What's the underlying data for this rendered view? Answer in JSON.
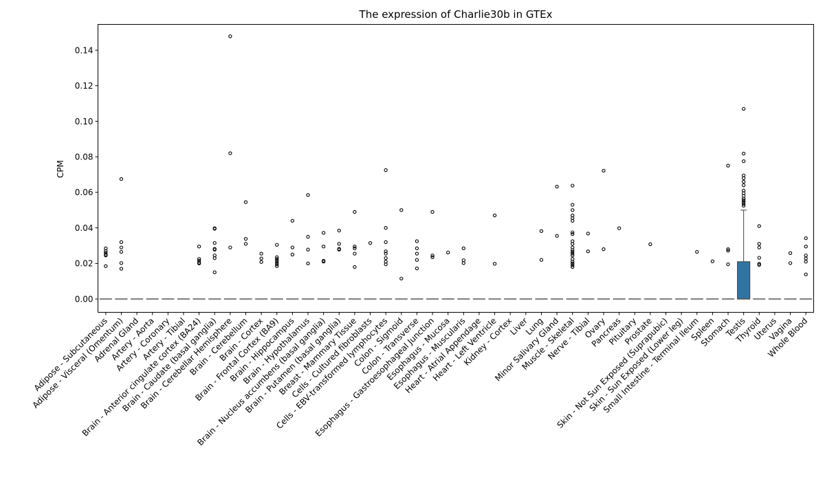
{
  "chart_data": {
    "type": "box",
    "title": "The expression of Charlie30b in GTEx",
    "xlabel": "",
    "ylabel": "CPM",
    "ylim": [
      -0.0075,
      0.1545
    ],
    "yticks": [
      "0.00",
      "0.02",
      "0.04",
      "0.06",
      "0.08",
      "0.10",
      "0.12",
      "0.14"
    ],
    "box_color": "#3274a1",
    "categories": [
      "Adipose - Subcutaneous",
      "Adipose - Visceral (Omentum)",
      "Adrenal Gland",
      "Artery - Aorta",
      "Artery - Coronary",
      "Artery - Tibial",
      "Brain - Anterior cingulate cortex (BA24)",
      "Brain - Caudate (basal ganglia)",
      "Brain - Cerebellar Hemisphere",
      "Brain - Cerebellum",
      "Brain - Cortex",
      "Brain - Frontal Cortex (BA9)",
      "Brain - Hippocampus",
      "Brain - Hypothalamus",
      "Brain - Nucleus accumbens (basal ganglia)",
      "Brain - Putamen (basal ganglia)",
      "Breast - Mammary Tissue",
      "Cells - Cultured fibroblasts",
      "Cells - EBV-transformed lymphocytes",
      "Colon - Sigmoid",
      "Colon - Transverse",
      "Esophagus - Gastroesophageal Junction",
      "Esophagus - Mucosa",
      "Esophagus - Muscularis",
      "Heart - Atrial Appendage",
      "Heart - Left Ventricle",
      "Kidney - Cortex",
      "Liver",
      "Lung",
      "Minor Salivary Gland",
      "Muscle - Skeletal",
      "Nerve - Tibial",
      "Ovary",
      "Pancreas",
      "Pituitary",
      "Prostate",
      "Skin - Not Sun Exposed (Suprapubic)",
      "Skin - Sun Exposed (Lower leg)",
      "Small Intestine - Terminal Ileum",
      "Spleen",
      "Stomach",
      "Testis",
      "Thyroid",
      "Uterus",
      "Vagina",
      "Whole Blood"
    ],
    "series": [
      {
        "q1": 0,
        "median": 0,
        "q3": 0,
        "whisker_low": 0,
        "whisker_high": 0,
        "outliers": [
          0.0285,
          0.027,
          0.026,
          0.025,
          0.0245,
          0.0185
        ]
      },
      {
        "q1": 0,
        "median": 0,
        "q3": 0,
        "whisker_low": 0,
        "whisker_high": 0,
        "outliers": [
          0.0675,
          0.032,
          0.029,
          0.0265,
          0.0202,
          0.017
        ]
      },
      {
        "q1": 0,
        "median": 0,
        "q3": 0,
        "whisker_low": 0,
        "whisker_high": 0,
        "outliers": []
      },
      {
        "q1": 0,
        "median": 0,
        "q3": 0,
        "whisker_low": 0,
        "whisker_high": 0,
        "outliers": []
      },
      {
        "q1": 0,
        "median": 0,
        "q3": 0,
        "whisker_low": 0,
        "whisker_high": 0,
        "outliers": []
      },
      {
        "q1": 0,
        "median": 0,
        "q3": 0,
        "whisker_low": 0,
        "whisker_high": 0,
        "outliers": []
      },
      {
        "q1": 0,
        "median": 0,
        "q3": 0,
        "whisker_low": 0,
        "whisker_high": 0,
        "outliers": [
          0.0295,
          0.0225,
          0.0215,
          0.0205,
          0.02
        ]
      },
      {
        "q1": 0,
        "median": 0,
        "q3": 0,
        "whisker_low": 0,
        "whisker_high": 0,
        "outliers": [
          0.0398,
          0.0395,
          0.0315,
          0.0282,
          0.0278,
          0.0245,
          0.023,
          0.015
        ]
      },
      {
        "q1": 0,
        "median": 0,
        "q3": 0,
        "whisker_low": 0,
        "whisker_high": 0,
        "outliers": [
          0.1478,
          0.082,
          0.029
        ]
      },
      {
        "q1": 0,
        "median": 0,
        "q3": 0,
        "whisker_low": 0,
        "whisker_high": 0,
        "outliers": [
          0.0545,
          0.0338,
          0.031
        ]
      },
      {
        "q1": 0,
        "median": 0,
        "q3": 0,
        "whisker_low": 0,
        "whisker_high": 0,
        "outliers": [
          0.0255,
          0.0228,
          0.0208
        ]
      },
      {
        "q1": 0,
        "median": 0,
        "q3": 0,
        "whisker_low": 0,
        "whisker_high": 0,
        "outliers": [
          0.0305,
          0.0235,
          0.0225,
          0.0215,
          0.0205,
          0.0195,
          0.0185
        ]
      },
      {
        "q1": 0,
        "median": 0,
        "q3": 0,
        "whisker_low": 0,
        "whisker_high": 0,
        "outliers": [
          0.044,
          0.029,
          0.025
        ]
      },
      {
        "q1": 0,
        "median": 0,
        "q3": 0,
        "whisker_low": 0,
        "whisker_high": 0,
        "outliers": [
          0.0585,
          0.035,
          0.0278,
          0.02
        ]
      },
      {
        "q1": 0,
        "median": 0,
        "q3": 0,
        "whisker_low": 0,
        "whisker_high": 0,
        "outliers": [
          0.0372,
          0.0295,
          0.0215,
          0.021
        ]
      },
      {
        "q1": 0,
        "median": 0,
        "q3": 0,
        "whisker_low": 0,
        "whisker_high": 0,
        "outliers": [
          0.0385,
          0.031,
          0.0282,
          0.0278
        ]
      },
      {
        "q1": 0,
        "median": 0,
        "q3": 0,
        "whisker_low": 0,
        "whisker_high": 0,
        "outliers": [
          0.049,
          0.0295,
          0.0285,
          0.0255,
          0.018
        ]
      },
      {
        "q1": 0,
        "median": 0,
        "q3": 0,
        "whisker_low": 0,
        "whisker_high": 0,
        "outliers": [
          0.0315
        ]
      },
      {
        "q1": 0,
        "median": 0,
        "q3": 0,
        "whisker_low": 0,
        "whisker_high": 0,
        "outliers": [
          0.0725,
          0.04,
          0.032,
          0.0268,
          0.0255,
          0.023,
          0.021,
          0.0195
        ]
      },
      {
        "q1": 0,
        "median": 0,
        "q3": 0,
        "whisker_low": 0,
        "whisker_high": 0,
        "outliers": [
          0.05,
          0.0115
        ]
      },
      {
        "q1": 0,
        "median": 0,
        "q3": 0,
        "whisker_low": 0,
        "whisker_high": 0,
        "outliers": [
          0.0325,
          0.0285,
          0.0255,
          0.022,
          0.0172
        ]
      },
      {
        "q1": 0,
        "median": 0,
        "q3": 0,
        "whisker_low": 0,
        "whisker_high": 0,
        "outliers": [
          0.049,
          0.0245,
          0.0235
        ]
      },
      {
        "q1": 0,
        "median": 0,
        "q3": 0,
        "whisker_low": 0,
        "whisker_high": 0,
        "outliers": [
          0.0262
        ]
      },
      {
        "q1": 0,
        "median": 0,
        "q3": 0,
        "whisker_low": 0,
        "whisker_high": 0,
        "outliers": [
          0.0285,
          0.0218,
          0.0202
        ]
      },
      {
        "q1": 0,
        "median": 0,
        "q3": 0,
        "whisker_low": 0,
        "whisker_high": 0,
        "outliers": []
      },
      {
        "q1": 0,
        "median": 0,
        "q3": 0,
        "whisker_low": 0,
        "whisker_high": 0,
        "outliers": [
          0.047,
          0.0198
        ]
      },
      {
        "q1": 0,
        "median": 0,
        "q3": 0,
        "whisker_low": 0,
        "whisker_high": 0,
        "outliers": []
      },
      {
        "q1": 0,
        "median": 0,
        "q3": 0,
        "whisker_low": 0,
        "whisker_high": 0,
        "outliers": []
      },
      {
        "q1": 0,
        "median": 0,
        "q3": 0,
        "whisker_low": 0,
        "whisker_high": 0,
        "outliers": [
          0.0382,
          0.022
        ]
      },
      {
        "q1": 0,
        "median": 0,
        "q3": 0,
        "whisker_low": 0,
        "whisker_high": 0,
        "outliers": [
          0.0632,
          0.0355
        ]
      },
      {
        "q1": 0,
        "median": 0,
        "q3": 0,
        "whisker_low": 0,
        "whisker_high": 0,
        "outliers": [
          0.0638,
          0.053,
          0.05,
          0.047,
          0.0455,
          0.044,
          0.0375,
          0.0365,
          0.0325,
          0.031,
          0.029,
          0.0275,
          0.0265,
          0.0255,
          0.0245,
          0.0225,
          0.021,
          0.02,
          0.019,
          0.018
        ]
      },
      {
        "q1": 0,
        "median": 0,
        "q3": 0,
        "whisker_low": 0,
        "whisker_high": 0,
        "outliers": [
          0.0368,
          0.0268
        ]
      },
      {
        "q1": 0,
        "median": 0,
        "q3": 0,
        "whisker_low": 0,
        "whisker_high": 0,
        "outliers": [
          0.0722,
          0.028
        ]
      },
      {
        "q1": 0,
        "median": 0,
        "q3": 0,
        "whisker_low": 0,
        "whisker_high": 0,
        "outliers": [
          0.0398
        ]
      },
      {
        "q1": 0,
        "median": 0,
        "q3": 0,
        "whisker_low": 0,
        "whisker_high": 0,
        "outliers": []
      },
      {
        "q1": 0,
        "median": 0,
        "q3": 0,
        "whisker_low": 0,
        "whisker_high": 0,
        "outliers": [
          0.0308
        ]
      },
      {
        "q1": 0,
        "median": 0,
        "q3": 0,
        "whisker_low": 0,
        "whisker_high": 0,
        "outliers": []
      },
      {
        "q1": 0,
        "median": 0,
        "q3": 0,
        "whisker_low": 0,
        "whisker_high": 0,
        "outliers": []
      },
      {
        "q1": 0,
        "median": 0,
        "q3": 0,
        "whisker_low": 0,
        "whisker_high": 0,
        "outliers": [
          0.0265
        ]
      },
      {
        "q1": 0,
        "median": 0,
        "q3": 0,
        "whisker_low": 0,
        "whisker_high": 0,
        "outliers": [
          0.0212
        ]
      },
      {
        "q1": 0,
        "median": 0,
        "q3": 0,
        "whisker_low": 0,
        "whisker_high": 0,
        "outliers": [
          0.075,
          0.028,
          0.0272,
          0.0195
        ]
      },
      {
        "q1": 0,
        "median": 0,
        "q3": 0.021,
        "whisker_low": 0,
        "whisker_high": 0.05,
        "outliers": [
          0.107,
          0.0818,
          0.0775,
          0.0695,
          0.068,
          0.066,
          0.064,
          0.061,
          0.0595,
          0.058,
          0.0565,
          0.0555,
          0.0545,
          0.0535,
          0.0525
        ]
      },
      {
        "q1": 0,
        "median": 0,
        "q3": 0,
        "whisker_low": 0,
        "whisker_high": 0,
        "outliers": [
          0.041,
          0.031,
          0.029,
          0.0232,
          0.0198,
          0.0192
        ]
      },
      {
        "q1": 0,
        "median": 0,
        "q3": 0,
        "whisker_low": 0,
        "whisker_high": 0,
        "outliers": []
      },
      {
        "q1": 0,
        "median": 0,
        "q3": 0,
        "whisker_low": 0,
        "whisker_high": 0,
        "outliers": [
          0.0258,
          0.0202
        ]
      },
      {
        "q1": 0,
        "median": 0,
        "q3": 0,
        "whisker_low": 0,
        "whisker_high": 0,
        "outliers": [
          0.0342,
          0.0295,
          0.0245,
          0.0228,
          0.021,
          0.0138
        ]
      }
    ]
  }
}
